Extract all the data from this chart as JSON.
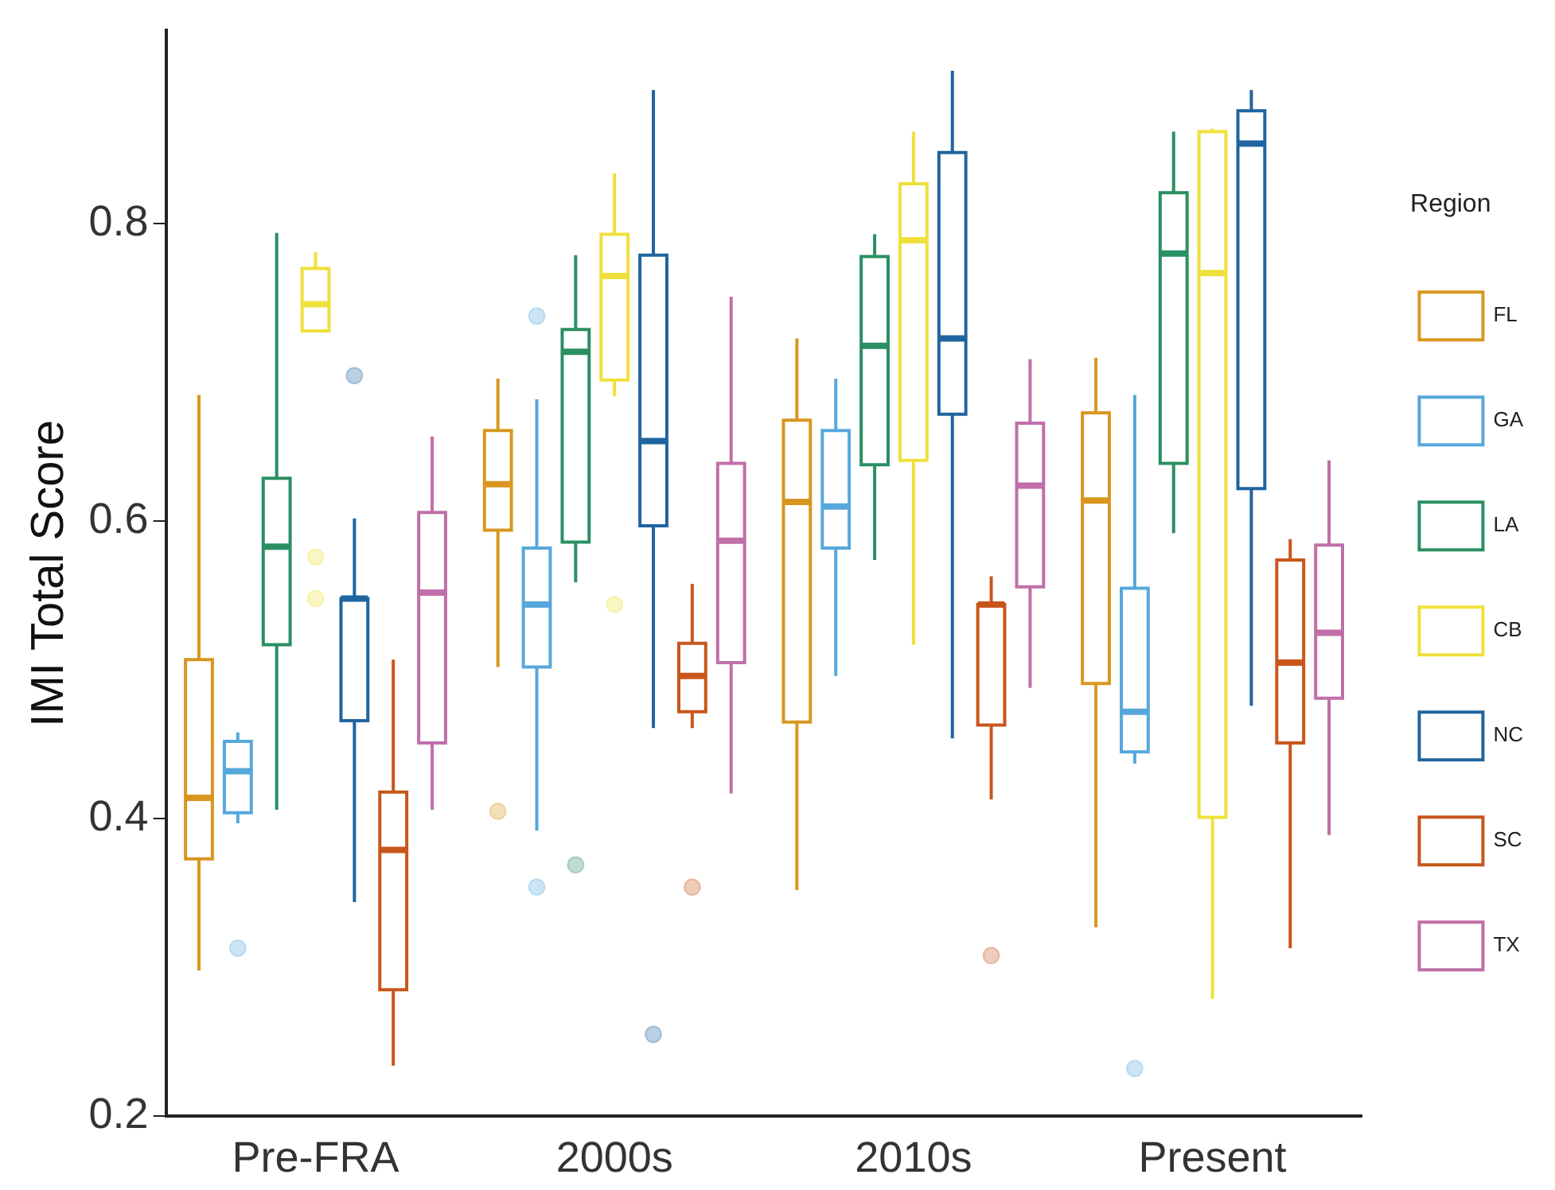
{
  "chart_data": {
    "type": "box",
    "ylabel": "IMI Total Score",
    "legend_title": "Region",
    "legend": "right",
    "grid": false,
    "categories": [
      "Pre-FRA",
      "2000s",
      "2010s",
      "Present"
    ],
    "ylim": [
      0.2,
      0.93
    ],
    "yticks": [
      0.2,
      0.4,
      0.6,
      0.8
    ],
    "series": [
      {
        "name": "FL",
        "color": "#d9961f",
        "boxes": [
          {
            "low": 0.298,
            "q1": 0.373,
            "median": 0.414,
            "q3": 0.507,
            "high": 0.685
          },
          {
            "low": 0.502,
            "q1": 0.594,
            "median": 0.625,
            "q3": 0.661,
            "high": 0.696,
            "outliers": [
              0.405
            ]
          },
          {
            "low": 0.352,
            "q1": 0.465,
            "median": 0.613,
            "q3": 0.668,
            "high": 0.723
          },
          {
            "low": 0.327,
            "q1": 0.491,
            "median": 0.614,
            "q3": 0.673,
            "high": 0.71
          }
        ]
      },
      {
        "name": "GA",
        "color": "#56a8dc",
        "boxes": [
          {
            "low": 0.397,
            "q1": 0.404,
            "median": 0.432,
            "q3": 0.452,
            "high": 0.458,
            "outliers": [
              0.313
            ]
          },
          {
            "low": 0.392,
            "q1": 0.502,
            "median": 0.544,
            "q3": 0.582,
            "high": 0.682,
            "outliers": [
              0.738,
              0.354
            ]
          },
          {
            "low": 0.496,
            "q1": 0.582,
            "median": 0.61,
            "q3": 0.661,
            "high": 0.696
          },
          {
            "low": 0.437,
            "q1": 0.445,
            "median": 0.472,
            "q3": 0.555,
            "high": 0.685,
            "outliers": [
              0.232
            ]
          }
        ]
      },
      {
        "name": "LA",
        "color": "#2a8f63",
        "boxes": [
          {
            "low": 0.406,
            "q1": 0.517,
            "median": 0.583,
            "q3": 0.629,
            "high": 0.794
          },
          {
            "low": 0.559,
            "q1": 0.586,
            "median": 0.714,
            "q3": 0.729,
            "high": 0.779,
            "outliers": [
              0.369
            ]
          },
          {
            "low": 0.574,
            "q1": 0.638,
            "median": 0.718,
            "q3": 0.778,
            "high": 0.793
          },
          {
            "low": 0.592,
            "q1": 0.639,
            "median": 0.78,
            "q3": 0.821,
            "high": 0.862
          }
        ]
      },
      {
        "name": "CB",
        "color": "#efe03b",
        "boxes": [
          {
            "low": 0.728,
            "q1": 0.728,
            "median": 0.746,
            "q3": 0.77,
            "high": 0.781,
            "outliers": [
              0.576,
              0.548
            ]
          },
          {
            "low": 0.684,
            "q1": 0.695,
            "median": 0.765,
            "q3": 0.793,
            "high": 0.834,
            "outliers": [
              0.544
            ]
          },
          {
            "low": 0.517,
            "q1": 0.641,
            "median": 0.789,
            "q3": 0.827,
            "high": 0.862
          },
          {
            "low": 0.279,
            "q1": 0.401,
            "median": 0.767,
            "q3": 0.862,
            "high": 0.864
          }
        ]
      },
      {
        "name": "NC",
        "color": "#1f64a0",
        "boxes": [
          {
            "low": 0.344,
            "q1": 0.466,
            "median": 0.548,
            "q3": 0.548,
            "high": 0.602,
            "outliers": [
              0.698
            ]
          },
          {
            "low": 0.461,
            "q1": 0.597,
            "median": 0.654,
            "q3": 0.779,
            "high": 0.89,
            "outliers": [
              0.255
            ]
          },
          {
            "low": 0.454,
            "q1": 0.672,
            "median": 0.723,
            "q3": 0.848,
            "high": 0.903
          },
          {
            "low": 0.476,
            "q1": 0.622,
            "median": 0.854,
            "q3": 0.876,
            "high": 0.89
          }
        ]
      },
      {
        "name": "SC",
        "color": "#c8561b",
        "boxes": [
          {
            "low": 0.234,
            "q1": 0.285,
            "median": 0.379,
            "q3": 0.418,
            "high": 0.507
          },
          {
            "low": 0.461,
            "q1": 0.472,
            "median": 0.496,
            "q3": 0.518,
            "high": 0.558,
            "outliers": [
              0.354
            ]
          },
          {
            "low": 0.413,
            "q1": 0.463,
            "median": 0.544,
            "q3": 0.544,
            "high": 0.563,
            "outliers": [
              0.308
            ]
          },
          {
            "low": 0.313,
            "q1": 0.451,
            "median": 0.505,
            "q3": 0.574,
            "high": 0.588
          }
        ]
      },
      {
        "name": "TX",
        "color": "#c06fa8",
        "boxes": [
          {
            "low": 0.406,
            "q1": 0.451,
            "median": 0.552,
            "q3": 0.606,
            "high": 0.657
          },
          {
            "low": 0.417,
            "q1": 0.505,
            "median": 0.587,
            "q3": 0.639,
            "high": 0.751
          },
          {
            "low": 0.488,
            "q1": 0.556,
            "median": 0.624,
            "q3": 0.666,
            "high": 0.709
          },
          {
            "low": 0.389,
            "q1": 0.481,
            "median": 0.525,
            "q3": 0.584,
            "high": 0.641
          }
        ]
      }
    ]
  }
}
